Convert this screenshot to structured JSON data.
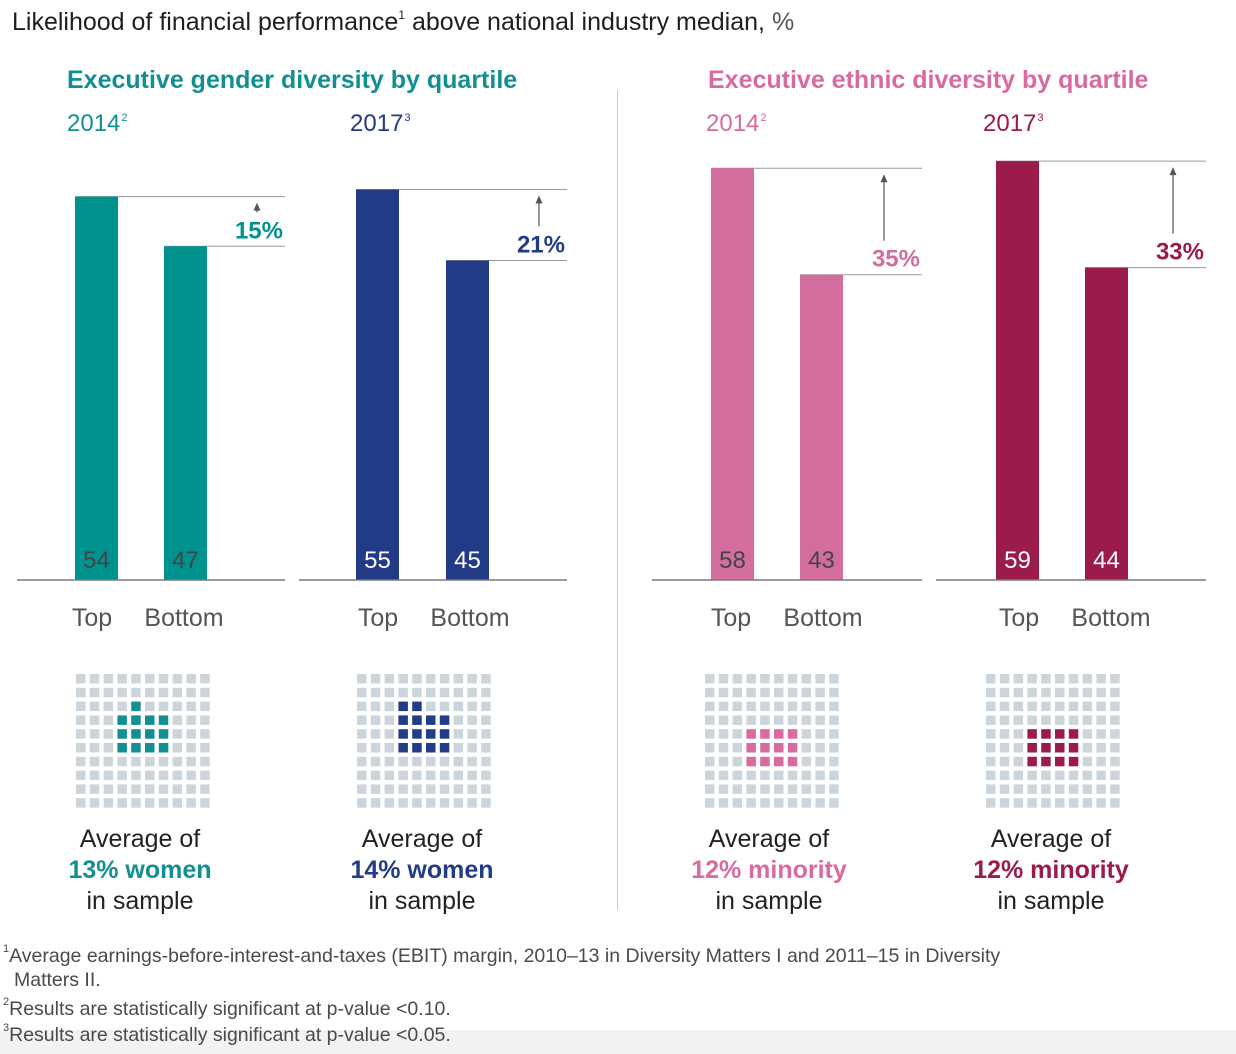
{
  "title": {
    "text": "Likelihood of financial performance",
    "sup": "1",
    "rest": " above national industry median, ",
    "unit": "%"
  },
  "groups": [
    {
      "title": "Executive gender diversity by quartile",
      "color": "#128f92"
    },
    {
      "title": "Executive ethnic diversity by quartile",
      "color": "#d96aa0"
    }
  ],
  "chart_data": {
    "type": "bar",
    "categories": [
      "Top",
      "Bottom"
    ],
    "series": [
      {
        "name": "2014",
        "sup": "2",
        "group": "Executive gender diversity by quartile",
        "values": [
          54,
          47
        ],
        "diff": "15%",
        "color": "#00928f",
        "label_color": "#444444"
      },
      {
        "name": "2017",
        "sup": "3",
        "group": "Executive gender diversity by quartile",
        "values": [
          55,
          45
        ],
        "diff": "21%",
        "color": "#223b87",
        "label_color": "#ffffff"
      },
      {
        "name": "2014",
        "sup": "2",
        "group": "Executive ethnic diversity by quartile",
        "values": [
          58,
          43
        ],
        "diff": "35%",
        "color": "#d36d9e",
        "label_color": "#444444"
      },
      {
        "name": "2017",
        "sup": "3",
        "group": "Executive ethnic diversity by quartile",
        "values": [
          59,
          44
        ],
        "diff": "33%",
        "color": "#9a1b4c",
        "label_color": "#ffffff"
      }
    ],
    "ylim": [
      0,
      60
    ]
  },
  "waffle": {
    "base_color": "#cdd5dc",
    "panels": [
      {
        "line1": "Average of",
        "highlight": "13% women",
        "line3": "in sample",
        "color": "#128f92",
        "pct": 13
      },
      {
        "line1": "Average of",
        "highlight": "14% women",
        "line3": "in sample",
        "color": "#233c89",
        "pct": 14
      },
      {
        "line1": "Average of",
        "highlight": "12% minority",
        "line3": "in sample",
        "color": "#d96aa0",
        "pct": 12
      },
      {
        "line1": "Average of",
        "highlight": "12% minority",
        "line3": "in sample",
        "color": "#9a1b4c",
        "pct": 12
      }
    ]
  },
  "footnotes": [
    {
      "sup": "1",
      "text": "Average earnings-before-interest-and-taxes (EBIT) margin, 2010–13 in Diversity Matters I and 2011–15 in Diversity"
    },
    {
      "sup": "",
      "text": "Matters II."
    },
    {
      "sup": "2",
      "text": "Results are statistically significant at p-value <0.10."
    },
    {
      "sup": "3",
      "text": "Results are statistically significant at p-value <0.05."
    }
  ]
}
